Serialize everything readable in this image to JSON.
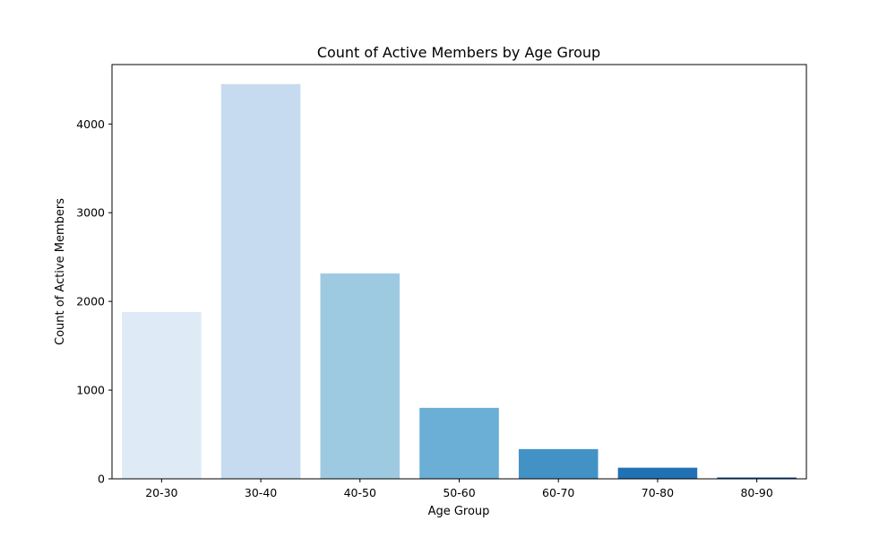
{
  "chart_data": {
    "type": "bar",
    "title": "Count of Active Members by Age Group",
    "xlabel": "Age Group",
    "ylabel": "Count of Active Members",
    "categories": [
      "20-30",
      "30-40",
      "40-50",
      "50-60",
      "60-70",
      "70-80",
      "80-90"
    ],
    "values": [
      1880,
      4450,
      2315,
      800,
      335,
      125,
      15
    ],
    "ylim": [
      0,
      4670
    ],
    "yticks": [
      0,
      1000,
      2000,
      3000,
      4000
    ],
    "ytick_labels": [
      "0",
      "1000",
      "2000",
      "3000",
      "4000"
    ],
    "colors": [
      "#deebf7",
      "#c6dbef",
      "#9ecae1",
      "#6baed6",
      "#4292c6",
      "#2171b5",
      "#08519c"
    ],
    "grid": false,
    "legend": "none"
  }
}
